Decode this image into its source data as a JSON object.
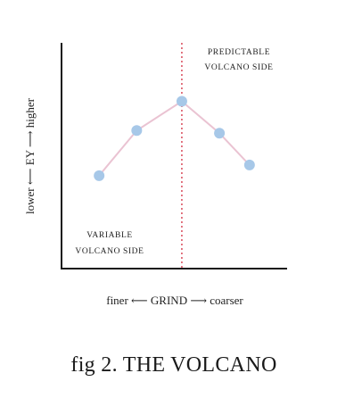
{
  "chart_data": {
    "type": "line",
    "title": "fig 2. THE VOLCANO",
    "xlabel": "finer ⟵ GRIND ⟶ coarser",
    "ylabel": "lower ⟵ EY ⟶ higher",
    "series": [
      {
        "values": [
          {
            "x": 1,
            "y": 1.0
          },
          {
            "x": 2,
            "y": 2.7
          },
          {
            "x": 3.2,
            "y": 3.8
          },
          {
            "x": 4.2,
            "y": 2.6
          },
          {
            "x": 5.0,
            "y": 1.4
          }
        ]
      }
    ],
    "xlim": [
      0,
      6
    ],
    "ylim": [
      -2.5,
      6
    ],
    "divider_x": 3.2,
    "annotations": {
      "left_region": [
        "VARIABLE",
        "VOLCANO SIDE"
      ],
      "right_region": [
        "PREDICTABLE",
        "VOLCANO SIDE"
      ]
    },
    "grid": false,
    "colors": {
      "line": "#eac3d2",
      "points": "#a7c8e8",
      "divider": "#d94a5a",
      "axes": "#1a1a1a"
    }
  }
}
